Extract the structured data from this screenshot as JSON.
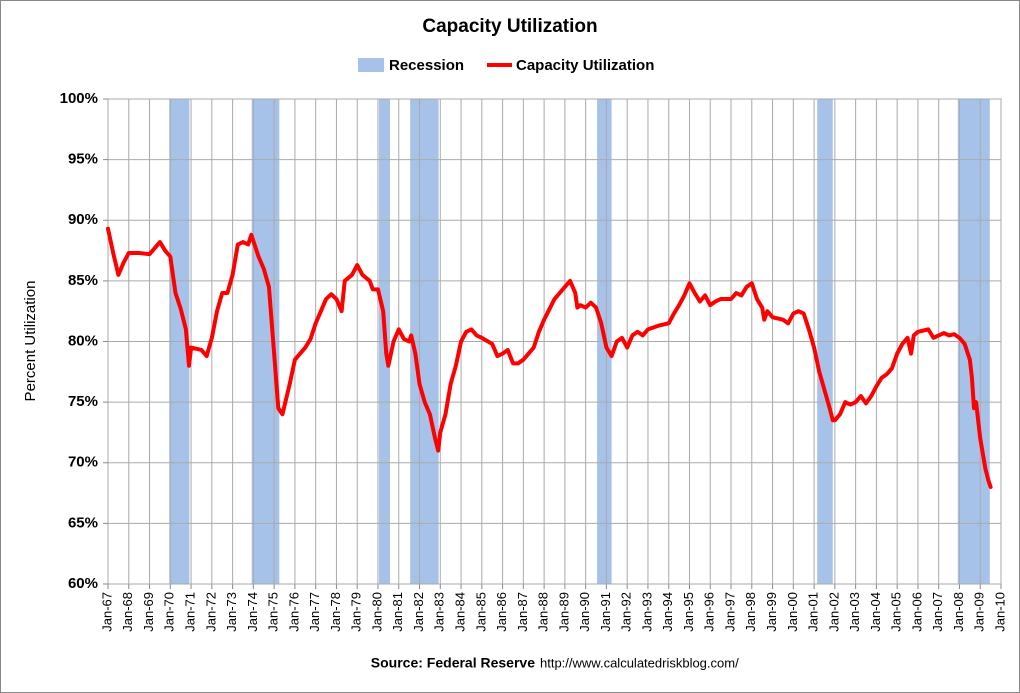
{
  "chart_data": {
    "type": "line",
    "title": "Capacity Utilization",
    "y_label": "Percent Utilization",
    "source": "Source: Federal Reserve",
    "url": "http://www.calculatedriskblog.com/",
    "xlim": [
      1967,
      2010
    ],
    "xticks": [
      {
        "value": 1967,
        "label": "Jan-67"
      },
      {
        "value": 1968,
        "label": "Jan-68"
      },
      {
        "value": 1969,
        "label": "Jan-69"
      },
      {
        "value": 1970,
        "label": "Jan-70"
      },
      {
        "value": 1971,
        "label": "Jan-71"
      },
      {
        "value": 1972,
        "label": "Jan-72"
      },
      {
        "value": 1973,
        "label": "Jan-73"
      },
      {
        "value": 1974,
        "label": "Jan-74"
      },
      {
        "value": 1975,
        "label": "Jan-75"
      },
      {
        "value": 1976,
        "label": "Jan-76"
      },
      {
        "value": 1977,
        "label": "Jan-77"
      },
      {
        "value": 1978,
        "label": "Jan-78"
      },
      {
        "value": 1979,
        "label": "Jan-79"
      },
      {
        "value": 1980,
        "label": "Jan-80"
      },
      {
        "value": 1981,
        "label": "Jan-81"
      },
      {
        "value": 1982,
        "label": "Jan-82"
      },
      {
        "value": 1983,
        "label": "Jan-83"
      },
      {
        "value": 1984,
        "label": "Jan-84"
      },
      {
        "value": 1985,
        "label": "Jan-85"
      },
      {
        "value": 1986,
        "label": "Jan-86"
      },
      {
        "value": 1987,
        "label": "Jan-87"
      },
      {
        "value": 1988,
        "label": "Jan-88"
      },
      {
        "value": 1989,
        "label": "Jan-89"
      },
      {
        "value": 1990,
        "label": "Jan-90"
      },
      {
        "value": 1991,
        "label": "Jan-91"
      },
      {
        "value": 1992,
        "label": "Jan-92"
      },
      {
        "value": 1993,
        "label": "Jan-93"
      },
      {
        "value": 1994,
        "label": "Jan-94"
      },
      {
        "value": 1995,
        "label": "Jan-95"
      },
      {
        "value": 1996,
        "label": "Jan-96"
      },
      {
        "value": 1997,
        "label": "Jan-97"
      },
      {
        "value": 1998,
        "label": "Jan-98"
      },
      {
        "value": 1999,
        "label": "Jan-99"
      },
      {
        "value": 2000,
        "label": "Jan-00"
      },
      {
        "value": 2001,
        "label": "Jan-01"
      },
      {
        "value": 2002,
        "label": "Jan-02"
      },
      {
        "value": 2003,
        "label": "Jan-03"
      },
      {
        "value": 2004,
        "label": "Jan-04"
      },
      {
        "value": 2005,
        "label": "Jan-05"
      },
      {
        "value": 2006,
        "label": "Jan-06"
      },
      {
        "value": 2007,
        "label": "Jan-07"
      },
      {
        "value": 2008,
        "label": "Jan-08"
      },
      {
        "value": 2009,
        "label": "Jan-09"
      },
      {
        "value": 2010,
        "label": "Jan-10"
      }
    ],
    "ylim": [
      60,
      100
    ],
    "yticks": [
      {
        "value": 60,
        "label": "60%"
      },
      {
        "value": 65,
        "label": "65%"
      },
      {
        "value": 70,
        "label": "70%"
      },
      {
        "value": 75,
        "label": "75%"
      },
      {
        "value": 80,
        "label": "80%"
      },
      {
        "value": 85,
        "label": "85%"
      },
      {
        "value": 90,
        "label": "90%"
      },
      {
        "value": 95,
        "label": "95%"
      },
      {
        "value": 100,
        "label": "100%"
      }
    ],
    "grid": true,
    "recessions": {
      "name": "Recession",
      "color": "#a7c2e8",
      "ranges": [
        [
          1969.95,
          1970.92
        ],
        [
          1973.92,
          1975.25
        ],
        [
          1980.05,
          1980.58
        ],
        [
          1981.55,
          1982.92
        ],
        [
          1990.55,
          1991.25
        ],
        [
          2001.15,
          2001.9
        ],
        [
          2007.92,
          2009.46
        ]
      ]
    },
    "x": [
      1967.0,
      1967.25,
      1967.5,
      1967.75,
      1968.0,
      1968.5,
      1969.0,
      1969.5,
      1969.75,
      1970.0,
      1970.25,
      1970.5,
      1970.75,
      1970.9,
      1971.0,
      1971.5,
      1971.75,
      1972.0,
      1972.25,
      1972.5,
      1972.75,
      1973.0,
      1973.25,
      1973.5,
      1973.75,
      1973.9,
      1974.25,
      1974.5,
      1974.75,
      1975.0,
      1975.2,
      1975.4,
      1975.75,
      1976.0,
      1976.5,
      1976.75,
      1977.0,
      1977.5,
      1977.75,
      1978.0,
      1978.25,
      1978.4,
      1978.75,
      1979.0,
      1979.25,
      1979.6,
      1979.75,
      1980.0,
      1980.25,
      1980.4,
      1980.5,
      1980.75,
      1981.0,
      1981.25,
      1981.5,
      1981.6,
      1981.8,
      1982.0,
      1982.25,
      1982.5,
      1982.75,
      1982.9,
      1983.0,
      1983.25,
      1983.5,
      1983.75,
      1984.0,
      1984.25,
      1984.5,
      1984.75,
      1985.0,
      1985.5,
      1985.75,
      1986.0,
      1986.25,
      1986.5,
      1986.75,
      1987.0,
      1987.5,
      1987.75,
      1988.0,
      1988.5,
      1988.75,
      1989.0,
      1989.25,
      1989.5,
      1989.6,
      1989.75,
      1990.0,
      1990.25,
      1990.5,
      1990.75,
      1991.0,
      1991.25,
      1991.5,
      1991.75,
      1992.0,
      1992.25,
      1992.5,
      1992.75,
      1993.0,
      1993.5,
      1994.0,
      1994.25,
      1994.5,
      1994.75,
      1995.0,
      1995.25,
      1995.5,
      1995.75,
      1996.0,
      1996.25,
      1996.5,
      1996.75,
      1997.0,
      1997.25,
      1997.5,
      1997.75,
      1998.0,
      1998.25,
      1998.5,
      1998.6,
      1998.75,
      1999.0,
      1999.5,
      1999.75,
      2000.0,
      2000.25,
      2000.5,
      2000.75,
      2001.0,
      2001.25,
      2001.5,
      2001.75,
      2001.9,
      2002.0,
      2002.25,
      2002.5,
      2002.75,
      2003.0,
      2003.25,
      2003.5,
      2003.75,
      2004.0,
      2004.25,
      2004.5,
      2004.75,
      2005.0,
      2005.25,
      2005.5,
      2005.67,
      2005.8,
      2006.0,
      2006.5,
      2006.75,
      2007.0,
      2007.25,
      2007.5,
      2007.75,
      2008.0,
      2008.25,
      2008.5,
      2008.6,
      2008.7,
      2008.8,
      2009.0,
      2009.25,
      2009.4,
      2009.5
    ],
    "series": [
      {
        "name": "Capacity Utilization",
        "color": "#ff0000",
        "values": [
          89.3,
          87.3,
          85.5,
          86.5,
          87.3,
          87.3,
          87.2,
          88.2,
          87.5,
          87.0,
          84.0,
          82.7,
          81.0,
          78.0,
          79.5,
          79.3,
          78.8,
          80.3,
          82.5,
          84.0,
          84.0,
          85.5,
          88.0,
          88.2,
          88.0,
          88.8,
          87.0,
          86.0,
          84.5,
          79.0,
          74.5,
          74.0,
          76.5,
          78.5,
          79.5,
          80.2,
          81.5,
          83.5,
          83.9,
          83.5,
          82.5,
          85.0,
          85.5,
          86.3,
          85.5,
          85.0,
          84.3,
          84.3,
          82.5,
          79.0,
          78.0,
          80.0,
          81.0,
          80.2,
          80.0,
          80.5,
          79.0,
          76.5,
          75.0,
          74.0,
          72.0,
          71.0,
          72.5,
          74.0,
          76.5,
          78.0,
          80.0,
          80.8,
          81.0,
          80.5,
          80.3,
          79.8,
          78.8,
          79.0,
          79.3,
          78.2,
          78.2,
          78.5,
          79.5,
          80.8,
          81.8,
          83.5,
          84.0,
          84.5,
          85.0,
          84.0,
          82.8,
          83.0,
          82.8,
          83.2,
          82.8,
          81.5,
          79.5,
          78.8,
          80.0,
          80.3,
          79.5,
          80.5,
          80.8,
          80.5,
          81.0,
          81.3,
          81.5,
          82.3,
          83.0,
          83.8,
          84.8,
          84.0,
          83.3,
          83.8,
          83.0,
          83.3,
          83.5,
          83.5,
          83.5,
          84.0,
          83.8,
          84.5,
          84.8,
          83.5,
          82.8,
          81.8,
          82.5,
          82.0,
          81.8,
          81.5,
          82.3,
          82.5,
          82.3,
          81.0,
          79.5,
          77.5,
          76.0,
          74.5,
          73.5,
          73.5,
          74.0,
          75.0,
          74.8,
          75.0,
          75.5,
          74.9,
          75.5,
          76.3,
          77.0,
          77.3,
          77.8,
          79.0,
          79.8,
          80.3,
          79.0,
          80.5,
          80.8,
          81.0,
          80.3,
          80.5,
          80.7,
          80.5,
          80.6,
          80.3,
          79.8,
          78.5,
          77.0,
          74.5,
          75.0,
          72.0,
          69.5,
          68.5,
          68.0
        ]
      }
    ]
  }
}
